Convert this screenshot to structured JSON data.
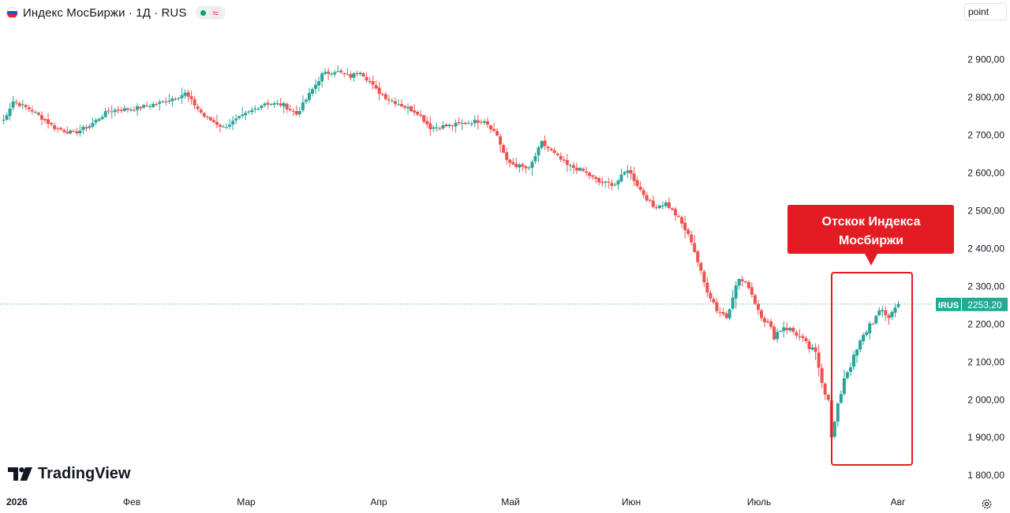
{
  "header": {
    "title": "Индекс МосБиржи · 1Д · RUS",
    "approx_symbol": "≈"
  },
  "scale_button": "point",
  "branding": {
    "logo_text": "TradingView"
  },
  "colors": {
    "up": "#26a69a",
    "down": "#ef5350",
    "annotation": "#e31b23",
    "price_line": "#22ab94"
  },
  "annotation": {
    "line1": "Отскок Индекса",
    "line2": "Мосбиржи"
  },
  "price_label": {
    "symbol": "IRUS",
    "value": "2253,20"
  },
  "chart_data": {
    "type": "candlestick",
    "title": "Индекс МосБиржи",
    "y_axis_ticks": [
      {
        "value": 2900,
        "label": "2 900,00"
      },
      {
        "value": 2800,
        "label": "2 800,00"
      },
      {
        "value": 2700,
        "label": "2 700,00"
      },
      {
        "value": 2600,
        "label": "2 600,00"
      },
      {
        "value": 2500,
        "label": "2 500,00"
      },
      {
        "value": 2400,
        "label": "2 400,00"
      },
      {
        "value": 2300,
        "label": "2 300,00"
      },
      {
        "value": 2200,
        "label": "2 200,00"
      },
      {
        "value": 2100,
        "label": "2 100,00"
      },
      {
        "value": 2000,
        "label": "2 000,00"
      },
      {
        "value": 1900,
        "label": "1 900,00"
      },
      {
        "value": 1800,
        "label": "1 800,00"
      }
    ],
    "ylim": [
      1765,
      2995
    ],
    "x_axis_ticks": [
      "2026",
      "Фев",
      "Мар",
      "Апр",
      "Май",
      "Июн",
      "Июль",
      "Авг"
    ],
    "last_value": 2253.2,
    "anchors": [
      [
        1,
        2740
      ],
      [
        4,
        2790
      ],
      [
        10,
        2765
      ],
      [
        17,
        2720
      ],
      [
        23,
        2705
      ],
      [
        28,
        2725
      ],
      [
        34,
        2765
      ],
      [
        42,
        2770
      ],
      [
        50,
        2785
      ],
      [
        58,
        2810
      ],
      [
        64,
        2750
      ],
      [
        70,
        2720
      ],
      [
        76,
        2750
      ],
      [
        83,
        2785
      ],
      [
        89,
        2780
      ],
      [
        93,
        2755
      ],
      [
        101,
        2860
      ],
      [
        105,
        2870
      ],
      [
        110,
        2855
      ],
      [
        113,
        2870
      ],
      [
        118,
        2820
      ],
      [
        121,
        2800
      ],
      [
        127,
        2775
      ],
      [
        131,
        2760
      ],
      [
        135,
        2720
      ],
      [
        141,
        2725
      ],
      [
        148,
        2735
      ],
      [
        152,
        2740
      ],
      [
        156,
        2700
      ],
      [
        159,
        2630
      ],
      [
        162,
        2620
      ],
      [
        166,
        2610
      ],
      [
        170,
        2680
      ],
      [
        174,
        2650
      ],
      [
        178,
        2620
      ],
      [
        183,
        2605
      ],
      [
        188,
        2575
      ],
      [
        193,
        2570
      ],
      [
        197,
        2610
      ],
      [
        201,
        2555
      ],
      [
        205,
        2510
      ],
      [
        209,
        2520
      ],
      [
        213,
        2480
      ],
      [
        217,
        2420
      ],
      [
        221,
        2310
      ],
      [
        225,
        2240
      ],
      [
        228,
        2220
      ],
      [
        230,
        2280
      ],
      [
        232,
        2320
      ],
      [
        235,
        2300
      ],
      [
        238,
        2240
      ],
      [
        241,
        2200
      ],
      [
        243,
        2170
      ],
      [
        246,
        2195
      ],
      [
        250,
        2175
      ],
      [
        253,
        2145
      ],
      [
        256,
        2120
      ],
      [
        259,
        2020
      ],
      [
        261,
        1900
      ],
      [
        263,
        1980
      ],
      [
        265,
        2060
      ],
      [
        268,
        2110
      ],
      [
        270,
        2150
      ],
      [
        273,
        2200
      ],
      [
        277,
        2235
      ],
      [
        279,
        2220
      ],
      [
        282,
        2253.2
      ]
    ]
  }
}
